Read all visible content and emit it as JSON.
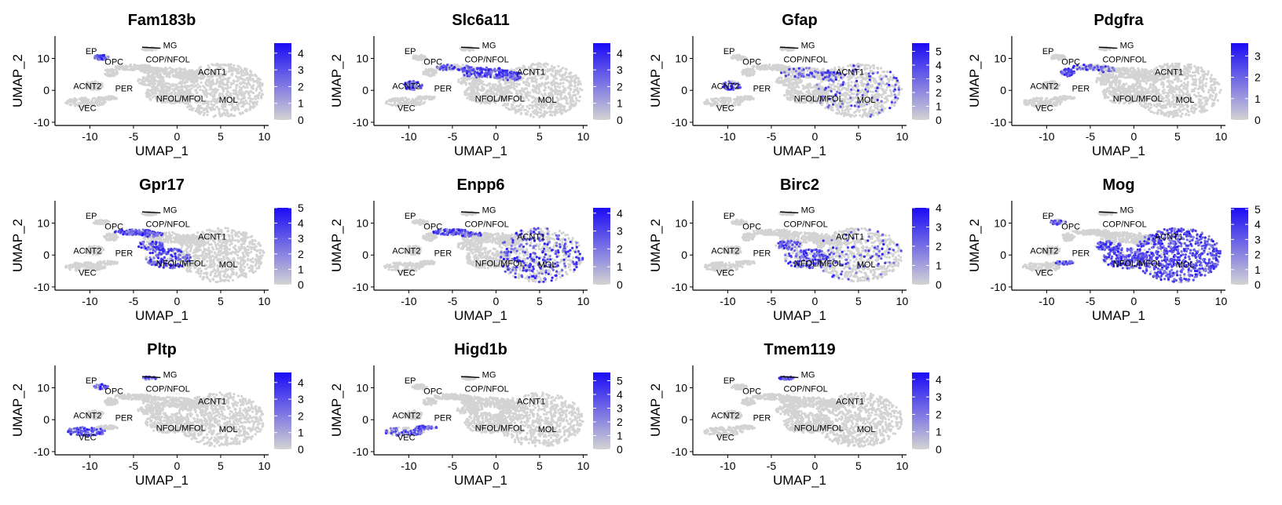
{
  "chart_data": [
    {
      "type": "scatter",
      "title": "Fam183b",
      "xlabel": "UMAP_1",
      "ylabel": "UMAP_2",
      "xlim": [
        -14,
        10.5
      ],
      "ylim": [
        -11,
        17
      ],
      "xticks": [
        -10,
        -5,
        0,
        5,
        10
      ],
      "yticks": [
        -10,
        0,
        10
      ],
      "color_scale": {
        "low": "#d3d3d3",
        "high": "#1a0bf5",
        "ticks": [
          0,
          1,
          2,
          3,
          4
        ],
        "max": 4.6
      },
      "clusters": [
        "EP",
        "MG",
        "OPC",
        "COP/NFOL",
        "ACNT2",
        "ACNT1",
        "PER",
        "NFOL/MFOL",
        "MOL",
        "VEC"
      ],
      "high_expression": {
        "EP": 0.7
      },
      "legend": "right"
    },
    {
      "type": "scatter",
      "title": "Slc6a11",
      "xlabel": "UMAP_1",
      "ylabel": "UMAP_2",
      "xlim": [
        -14,
        10.5
      ],
      "ylim": [
        -11,
        17
      ],
      "xticks": [
        -10,
        -5,
        0,
        5,
        10
      ],
      "yticks": [
        -10,
        0,
        10
      ],
      "color_scale": {
        "low": "#d3d3d3",
        "high": "#1a0bf5",
        "ticks": [
          0,
          1,
          2,
          3,
          4
        ],
        "max": 4.6
      },
      "clusters": [
        "EP",
        "MG",
        "OPC",
        "COP/NFOL",
        "ACNT2",
        "ACNT1",
        "PER",
        "NFOL/MFOL",
        "MOL",
        "VEC"
      ],
      "high_expression": {
        "ACNT2": 0.75,
        "ACNT1": 0.7,
        "COP/NFOL": 0.35
      },
      "legend": "right"
    },
    {
      "type": "scatter",
      "title": "Gfap",
      "xlabel": "UMAP_1",
      "ylabel": "UMAP_2",
      "xlim": [
        -14,
        10.5
      ],
      "ylim": [
        -11,
        17
      ],
      "xticks": [
        -10,
        -5,
        0,
        5,
        10
      ],
      "yticks": [
        -10,
        0,
        10
      ],
      "color_scale": {
        "low": "#d3d3d3",
        "high": "#1a0bf5",
        "ticks": [
          0,
          1,
          2,
          3,
          4,
          5
        ],
        "max": 5.6
      },
      "clusters": [
        "EP",
        "MG",
        "OPC",
        "COP/NFOL",
        "ACNT2",
        "ACNT1",
        "PER",
        "NFOL/MFOL",
        "MOL",
        "VEC"
      ],
      "high_expression": {
        "ACNT2": 0.6,
        "ACNT1": 0.25,
        "MOL": 0.12
      },
      "legend": "right"
    },
    {
      "type": "scatter",
      "title": "Pdgfra",
      "xlabel": "UMAP_1",
      "ylabel": "UMAP_2",
      "xlim": [
        -14,
        10.5
      ],
      "ylim": [
        -11,
        17
      ],
      "xticks": [
        -10,
        -5,
        0,
        5,
        10
      ],
      "yticks": [
        -10,
        0,
        10
      ],
      "color_scale": {
        "low": "#d3d3d3",
        "high": "#1a0bf5",
        "ticks": [
          0,
          1,
          2,
          3
        ],
        "max": 3.6
      },
      "clusters": [
        "EP",
        "MG",
        "OPC",
        "COP/NFOL",
        "ACNT2",
        "ACNT1",
        "PER",
        "NFOL/MFOL",
        "MOL",
        "VEC"
      ],
      "high_expression": {
        "OPC": 0.7,
        "COP/NFOL": 0.2
      },
      "legend": "right"
    },
    {
      "type": "scatter",
      "title": "Gpr17",
      "xlabel": "UMAP_1",
      "ylabel": "UMAP_2",
      "xlim": [
        -14,
        10.5
      ],
      "ylim": [
        -11,
        17
      ],
      "xticks": [
        -10,
        -5,
        0,
        5,
        10
      ],
      "yticks": [
        -10,
        0,
        10
      ],
      "color_scale": {
        "low": "#d3d3d3",
        "high": "#1a0bf5",
        "ticks": [
          0,
          1,
          2,
          3,
          4,
          5
        ],
        "max": 5
      },
      "clusters": [
        "EP",
        "MG",
        "OPC",
        "COP/NFOL",
        "ACNT2",
        "ACNT1",
        "PER",
        "NFOL/MFOL",
        "MOL",
        "VEC"
      ],
      "high_expression": {
        "COP/NFOL": 0.75,
        "NFOL/MFOL": 0.55
      },
      "legend": "right"
    },
    {
      "type": "scatter",
      "title": "Enpp6",
      "xlabel": "UMAP_1",
      "ylabel": "UMAP_2",
      "xlim": [
        -14,
        10.5
      ],
      "ylim": [
        -11,
        17
      ],
      "xticks": [
        -10,
        -5,
        0,
        5,
        10
      ],
      "yticks": [
        -10,
        0,
        10
      ],
      "color_scale": {
        "low": "#d3d3d3",
        "high": "#1a0bf5",
        "ticks": [
          0,
          1,
          2,
          3,
          4
        ],
        "max": 4.3
      },
      "clusters": [
        "EP",
        "MG",
        "OPC",
        "COP/NFOL",
        "ACNT2",
        "ACNT1",
        "PER",
        "NFOL/MFOL",
        "MOL",
        "VEC"
      ],
      "high_expression": {
        "COP/NFOL": 0.6,
        "MOL": 0.35
      },
      "legend": "right"
    },
    {
      "type": "scatter",
      "title": "Birc2",
      "xlabel": "UMAP_1",
      "ylabel": "UMAP_2",
      "xlim": [
        -14,
        10.5
      ],
      "ylim": [
        -11,
        17
      ],
      "xticks": [
        -10,
        -5,
        0,
        5,
        10
      ],
      "yticks": [
        -10,
        0,
        10
      ],
      "color_scale": {
        "low": "#d3d3d3",
        "high": "#1a0bf5",
        "ticks": [
          0,
          1,
          2,
          3,
          4
        ],
        "max": 4
      },
      "clusters": [
        "EP",
        "MG",
        "OPC",
        "COP/NFOL",
        "ACNT2",
        "ACNT1",
        "PER",
        "NFOL/MFOL",
        "MOL",
        "VEC"
      ],
      "high_expression": {
        "NFOL/MFOL": 0.55,
        "MOL": 0.12
      },
      "legend": "right"
    },
    {
      "type": "scatter",
      "title": "Mog",
      "xlabel": "UMAP_1",
      "ylabel": "UMAP_2",
      "xlim": [
        -14,
        10.5
      ],
      "ylim": [
        -11,
        17
      ],
      "xticks": [
        -10,
        -5,
        0,
        5,
        10
      ],
      "yticks": [
        -10,
        0,
        10
      ],
      "color_scale": {
        "low": "#d3d3d3",
        "high": "#1a0bf5",
        "ticks": [
          0,
          1,
          2,
          3,
          4,
          5
        ],
        "max": 5.1
      },
      "clusters": [
        "EP",
        "MG",
        "OPC",
        "COP/NFOL",
        "ACNT2",
        "ACNT1",
        "PER",
        "NFOL/MFOL",
        "MOL",
        "VEC"
      ],
      "high_expression": {
        "MOL": 0.85,
        "NFOL/MFOL": 0.75,
        "PER": 0.55,
        "EP": 0.45
      },
      "legend": "right"
    },
    {
      "type": "scatter",
      "title": "Pltp",
      "xlabel": "UMAP_1",
      "ylabel": "UMAP_2",
      "xlim": [
        -14,
        10.5
      ],
      "ylim": [
        -11,
        17
      ],
      "xticks": [
        -10,
        -5,
        0,
        5,
        10
      ],
      "yticks": [
        -10,
        0,
        10
      ],
      "color_scale": {
        "low": "#d3d3d3",
        "high": "#1a0bf5",
        "ticks": [
          0,
          1,
          2,
          3,
          4
        ],
        "max": 4.6
      },
      "clusters": [
        "EP",
        "MG",
        "OPC",
        "COP/NFOL",
        "ACNT2",
        "ACNT1",
        "PER",
        "NFOL/MFOL",
        "MOL",
        "VEC"
      ],
      "high_expression": {
        "VEC": 0.8,
        "EP": 0.5,
        "MG": 0.3
      },
      "legend": "right"
    },
    {
      "type": "scatter",
      "title": "Higd1b",
      "xlabel": "UMAP_1",
      "ylabel": "UMAP_2",
      "xlim": [
        -14,
        10.5
      ],
      "ylim": [
        -11,
        17
      ],
      "xticks": [
        -10,
        -5,
        0,
        5,
        10
      ],
      "yticks": [
        -10,
        0,
        10
      ],
      "color_scale": {
        "low": "#d3d3d3",
        "high": "#1a0bf5",
        "ticks": [
          0,
          1,
          2,
          3,
          4,
          5
        ],
        "max": 5.6
      },
      "clusters": [
        "EP",
        "MG",
        "OPC",
        "COP/NFOL",
        "ACNT2",
        "ACNT1",
        "PER",
        "NFOL/MFOL",
        "MOL",
        "VEC"
      ],
      "high_expression": {
        "VEC": 0.55,
        "PER": 0.5
      },
      "legend": "right"
    },
    {
      "type": "scatter",
      "title": "Tmem119",
      "xlabel": "UMAP_1",
      "ylabel": "UMAP_2",
      "xlim": [
        -14,
        10.5
      ],
      "ylim": [
        -11,
        17
      ],
      "xticks": [
        -10,
        -5,
        0,
        5,
        10
      ],
      "yticks": [
        -10,
        0,
        10
      ],
      "color_scale": {
        "low": "#d3d3d3",
        "high": "#1a0bf5",
        "ticks": [
          0,
          1,
          2,
          3,
          4
        ],
        "max": 4.4
      },
      "clusters": [
        "EP",
        "MG",
        "OPC",
        "COP/NFOL",
        "ACNT2",
        "ACNT1",
        "PER",
        "NFOL/MFOL",
        "MOL",
        "VEC"
      ],
      "high_expression": {
        "MG": 0.8
      },
      "legend": "right"
    }
  ]
}
